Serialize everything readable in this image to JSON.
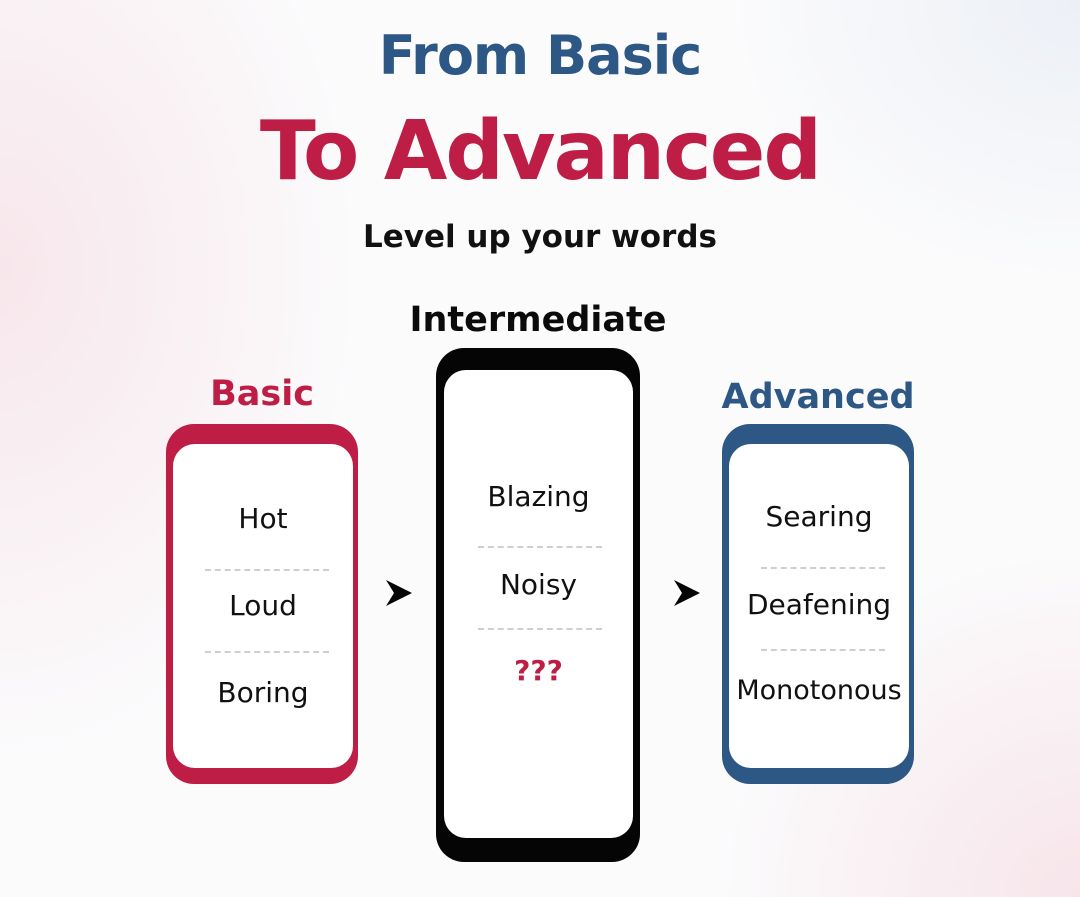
{
  "title": {
    "line1": "From Basic",
    "line2": "To Advanced",
    "subtitle": "Level up your words"
  },
  "colors": {
    "basic": "#be1e45",
    "intermediate": "#050505",
    "advanced": "#2d5784"
  },
  "columns": [
    {
      "heading": "Basic",
      "words": [
        "Hot",
        "Loud",
        "Boring"
      ]
    },
    {
      "heading": "Intermediate",
      "words": [
        "Blazing",
        "Noisy",
        "???"
      ]
    },
    {
      "heading": "Advanced",
      "words": [
        "Searing",
        "Deafening",
        "Monotonous"
      ]
    }
  ],
  "icons": {
    "arrow": "chevron-right-icon"
  }
}
